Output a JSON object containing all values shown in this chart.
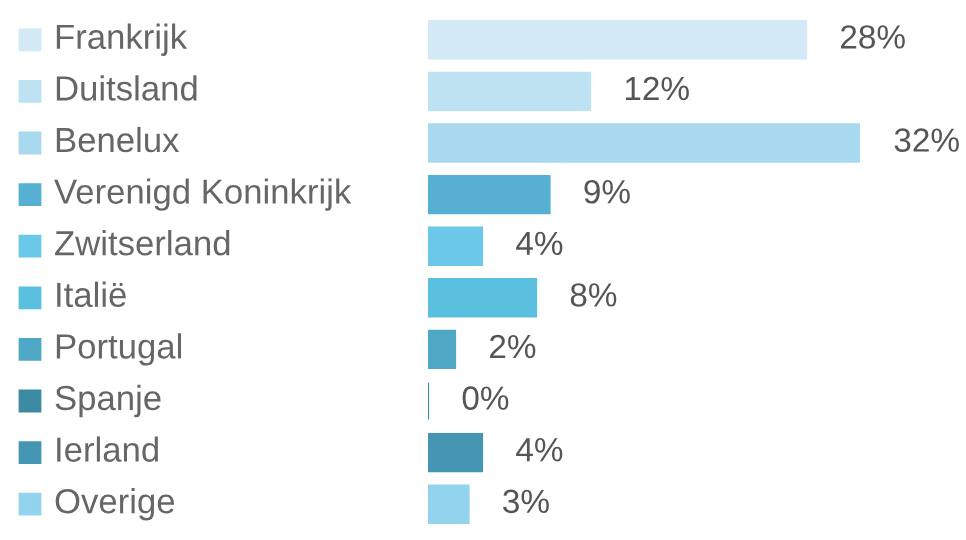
{
  "chart_data": {
    "type": "bar",
    "orientation": "horizontal",
    "data_labels": true,
    "categories": [
      "Frankrijk",
      "Duitsland",
      "Benelux",
      "Verenigd Koninkrijk",
      "Zwitserland",
      "Italië",
      "Portugal",
      "Spanje",
      "Ierland",
      "Overige"
    ],
    "values": [
      28,
      12,
      32,
      9,
      4,
      8,
      2,
      0,
      4,
      3
    ],
    "value_labels": [
      "28%",
      "12%",
      "32%",
      "9%",
      "4%",
      "8%",
      "2%",
      "0%",
      "4%",
      "3%"
    ],
    "colors": [
      "#d3eaf6",
      "#bde2f2",
      "#a8d9ee",
      "#55b0d2",
      "#6cc8e8",
      "#5bbfe0",
      "#4ea8c6",
      "#3d8aa3",
      "#4596b2",
      "#92d3ed"
    ]
  }
}
